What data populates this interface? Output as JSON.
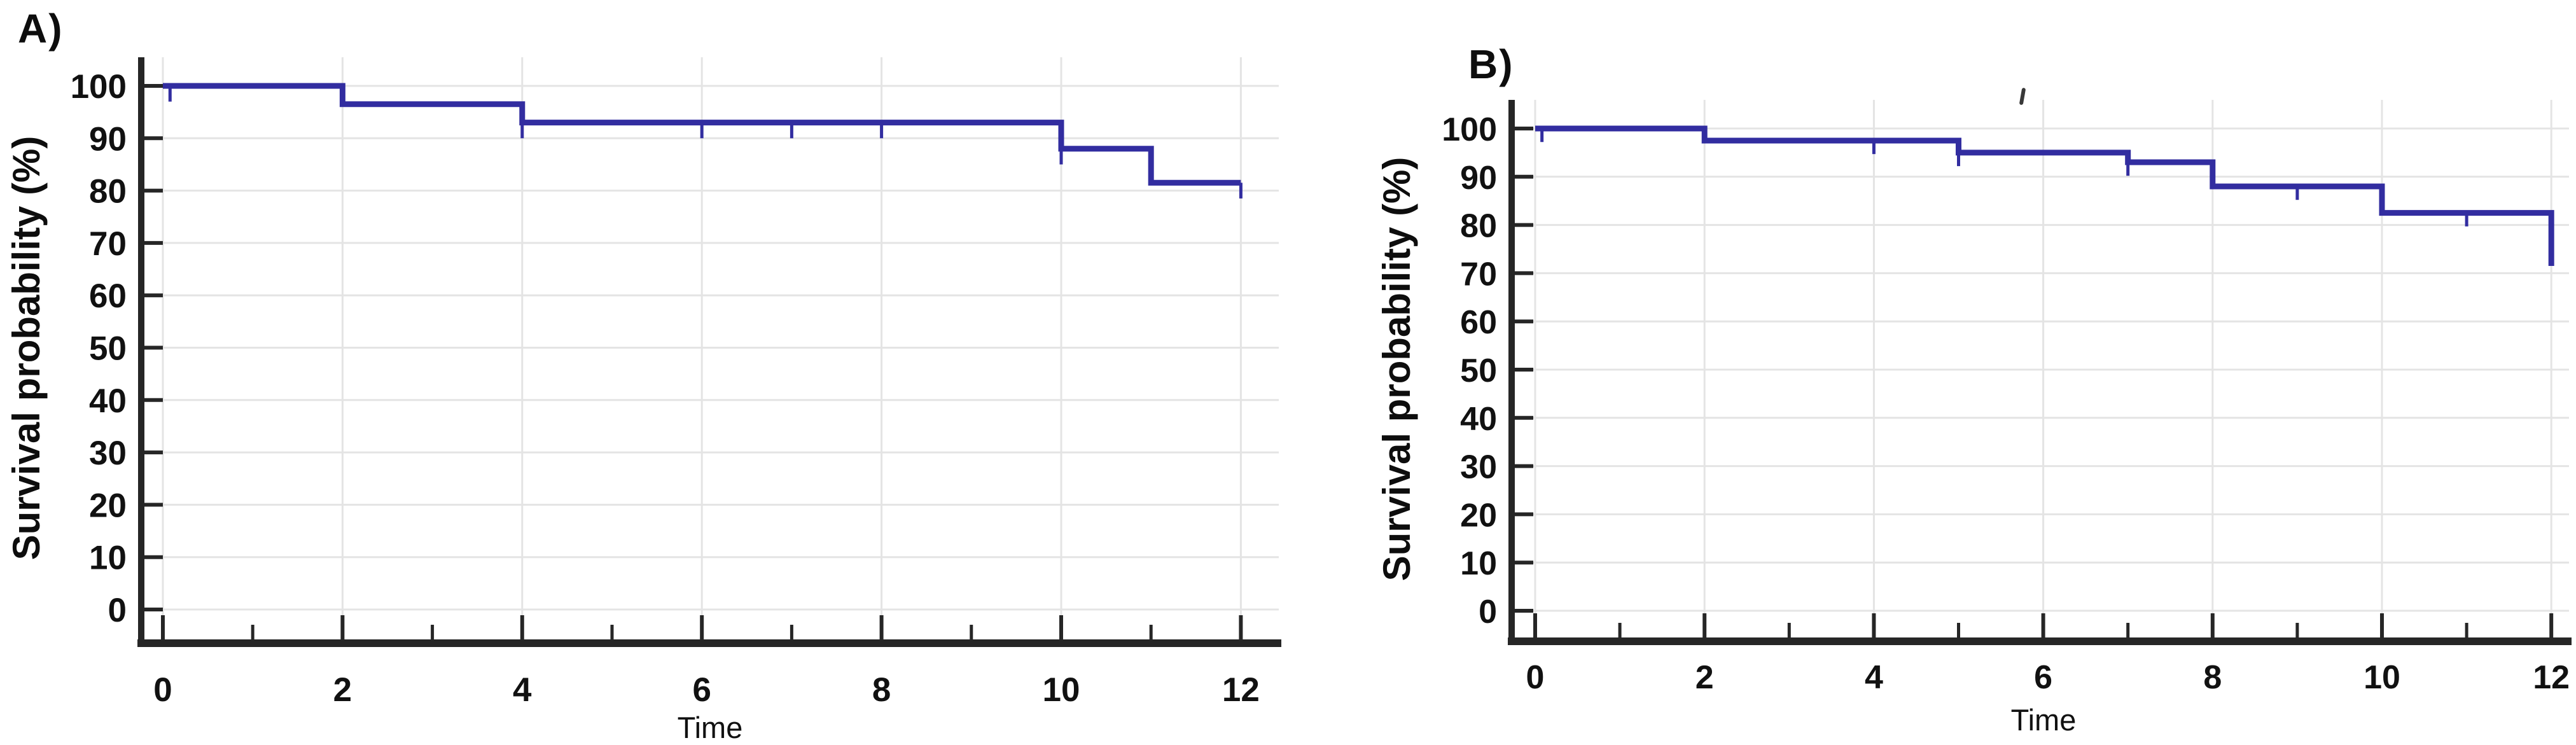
{
  "figure": {
    "kind": "kaplan-meier-survival-figure",
    "accent_color": "#322da0",
    "axis_color": "#262626",
    "grid_color": "#e4e4e4",
    "text_color": "#111111"
  },
  "chart_data": [
    {
      "id": "A",
      "type": "line",
      "panel_label": "A)",
      "xlabel": "Time",
      "ylabel": "Survival probability (%)",
      "xlim": [
        0,
        12
      ],
      "ylim": [
        0,
        100
      ],
      "xticks_major": [
        0,
        2,
        4,
        6,
        8,
        10,
        12
      ],
      "xticks_minor": [
        1,
        3,
        5,
        7,
        9,
        11
      ],
      "yticks": [
        0,
        10,
        20,
        30,
        40,
        50,
        60,
        70,
        80,
        90,
        100
      ],
      "grid": true,
      "legend": "none",
      "line_color": "#322da0",
      "series": [
        {
          "name": "Survival probability",
          "step_points": [
            [
              0,
              100
            ],
            [
              2,
              100
            ],
            [
              2,
              96.5
            ],
            [
              4,
              96.5
            ],
            [
              4,
              93
            ],
            [
              10,
              93
            ],
            [
              10,
              88
            ],
            [
              11,
              88
            ],
            [
              11,
              81.5
            ],
            [
              12,
              81.5
            ]
          ]
        }
      ],
      "censor_marks": [
        [
          0.08,
          100
        ],
        [
          4,
          93
        ],
        [
          6,
          93
        ],
        [
          7,
          93
        ],
        [
          8,
          93
        ],
        [
          10,
          88
        ],
        [
          12,
          81.5
        ]
      ],
      "censor_tick_drop": 3
    },
    {
      "id": "B",
      "type": "line",
      "panel_label": "B)",
      "xlabel": "Time",
      "ylabel": "Survival probability (%)",
      "xlim": [
        0,
        12
      ],
      "ylim": [
        0,
        100
      ],
      "xticks_major": [
        0,
        2,
        4,
        6,
        8,
        10,
        12
      ],
      "xticks_minor": [
        1,
        3,
        5,
        7,
        9,
        11
      ],
      "yticks": [
        0,
        10,
        20,
        30,
        40,
        50,
        60,
        70,
        80,
        90,
        100
      ],
      "grid": true,
      "legend": "none",
      "line_color": "#322da0",
      "series": [
        {
          "name": "Survival probability",
          "step_points": [
            [
              0,
              100
            ],
            [
              2,
              100
            ],
            [
              2,
              97.5
            ],
            [
              5,
              97.5
            ],
            [
              5,
              95
            ],
            [
              7,
              95
            ],
            [
              7,
              93
            ],
            [
              8,
              93
            ],
            [
              8,
              88
            ],
            [
              10,
              88
            ],
            [
              10,
              82.5
            ],
            [
              12,
              82.5
            ],
            [
              12,
              71.5
            ]
          ]
        }
      ],
      "censor_marks": [
        [
          0.08,
          100
        ],
        [
          4,
          97.5
        ],
        [
          5,
          95
        ],
        [
          7,
          93
        ],
        [
          9,
          88
        ],
        [
          11,
          82.5
        ]
      ],
      "censor_tick_drop": 2.8
    }
  ]
}
